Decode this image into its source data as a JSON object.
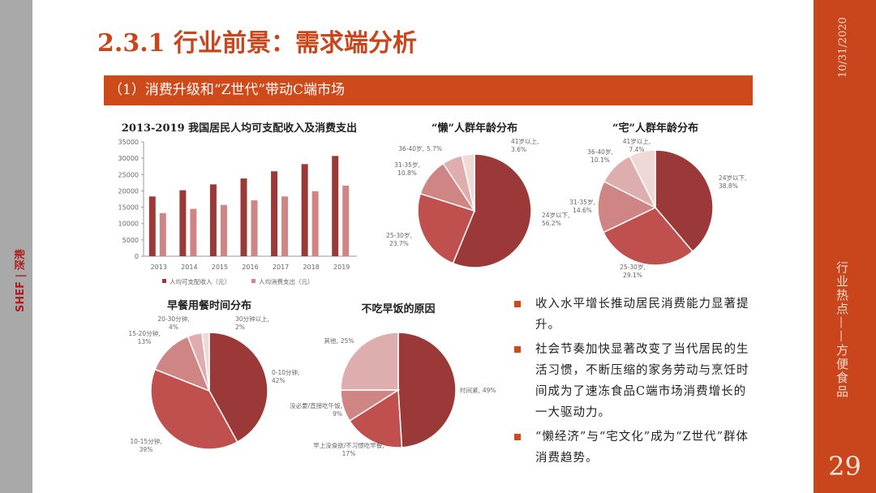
{
  "slide": {
    "title": "2.3.1 行业前景：需求端分析",
    "banner": "（1）消费升级和“Z世代”带动C端市场",
    "date": "10/31/2020",
    "section": "行业热点——方便食品",
    "page_number": "29",
    "logo_text": "SHEF | 深港"
  },
  "colors": {
    "accent": "#c9451b",
    "dark": "#9b3838",
    "red": "#c0504d",
    "mid": "#d08585",
    "light": "#deadad",
    "pale": "#efd9d7"
  },
  "bullets": [
    "收入水平增长推动居民消费能力显著提升。",
    "社会节奏加快显著改变了当代居民的生活习惯，不断压缩的家务劳动与烹饪时间成为了速冻食品C端市场消费增长的一大驱动力。",
    "“懒经济”与“宅文化”成为“Z世代”群体消费趋势。"
  ],
  "chart_data": [
    {
      "type": "bar",
      "title": "2013-2019 我国居民人均可支配收入及消费支出",
      "categories": [
        "2013",
        "2014",
        "2015",
        "2016",
        "2017",
        "2018",
        "2019"
      ],
      "series": [
        {
          "name": "人均可支配收入（元）",
          "values": [
            18300,
            20200,
            22000,
            23800,
            26000,
            28200,
            30700
          ]
        },
        {
          "name": "人均消费支出（元）",
          "values": [
            13200,
            14500,
            15700,
            17100,
            18300,
            19900,
            21600
          ]
        }
      ],
      "ylim": [
        0,
        35000
      ],
      "yticks": [
        "0",
        "5000",
        "10000",
        "15000",
        "20000",
        "25000",
        "30000",
        "35000"
      ],
      "legend": "bottom",
      "grid": false
    },
    {
      "type": "pie",
      "title": "“懒”人群年龄分布",
      "slices": [
        {
          "label": "24岁以下,",
          "pct": "56.2%",
          "value": 56.2
        },
        {
          "label": "25-30岁,",
          "pct": "23.7%",
          "value": 23.7
        },
        {
          "label": "31-35岁,",
          "pct": "10.8%",
          "value": 10.8
        },
        {
          "label": "36-40岁,",
          "pct": "5.7%",
          "value": 5.7
        },
        {
          "label": "41岁以上,",
          "pct": "3.6%",
          "value": 3.6
        }
      ]
    },
    {
      "type": "pie",
      "title": "“宅”人群年龄分布",
      "slices": [
        {
          "label": "24岁以下,",
          "pct": "38.8%",
          "value": 38.8
        },
        {
          "label": "25-30岁,",
          "pct": "29.1%",
          "value": 29.1
        },
        {
          "label": "31-35岁,",
          "pct": "14.6%",
          "value": 14.6
        },
        {
          "label": "36-40岁,",
          "pct": "10.1%",
          "value": 10.1
        },
        {
          "label": "41岁以上,",
          "pct": "7.4%",
          "value": 7.4
        }
      ]
    },
    {
      "type": "pie",
      "title": "早餐用餐时间分布",
      "slices": [
        {
          "label": "0-10分钟,",
          "pct": "42%",
          "value": 42
        },
        {
          "label": "10-15分钟,",
          "pct": "39%",
          "value": 39
        },
        {
          "label": "15-20分钟,",
          "pct": "13%",
          "value": 13
        },
        {
          "label": "20-30分钟,",
          "pct": "4%",
          "value": 4
        },
        {
          "label": "30分钟以上,",
          "pct": "2%",
          "value": 2
        }
      ]
    },
    {
      "type": "pie",
      "title": "不吃早饭的原因",
      "slices": [
        {
          "label": "时间紧,",
          "pct": "49%",
          "value": 49
        },
        {
          "label": "早上没食欲/不习惯吃早餐,",
          "pct": "17%",
          "value": 17
        },
        {
          "label": "没必要/直接吃午饭,",
          "pct": "9%",
          "value": 9
        },
        {
          "label": "其他,",
          "pct": "25%",
          "value": 25
        }
      ]
    }
  ]
}
